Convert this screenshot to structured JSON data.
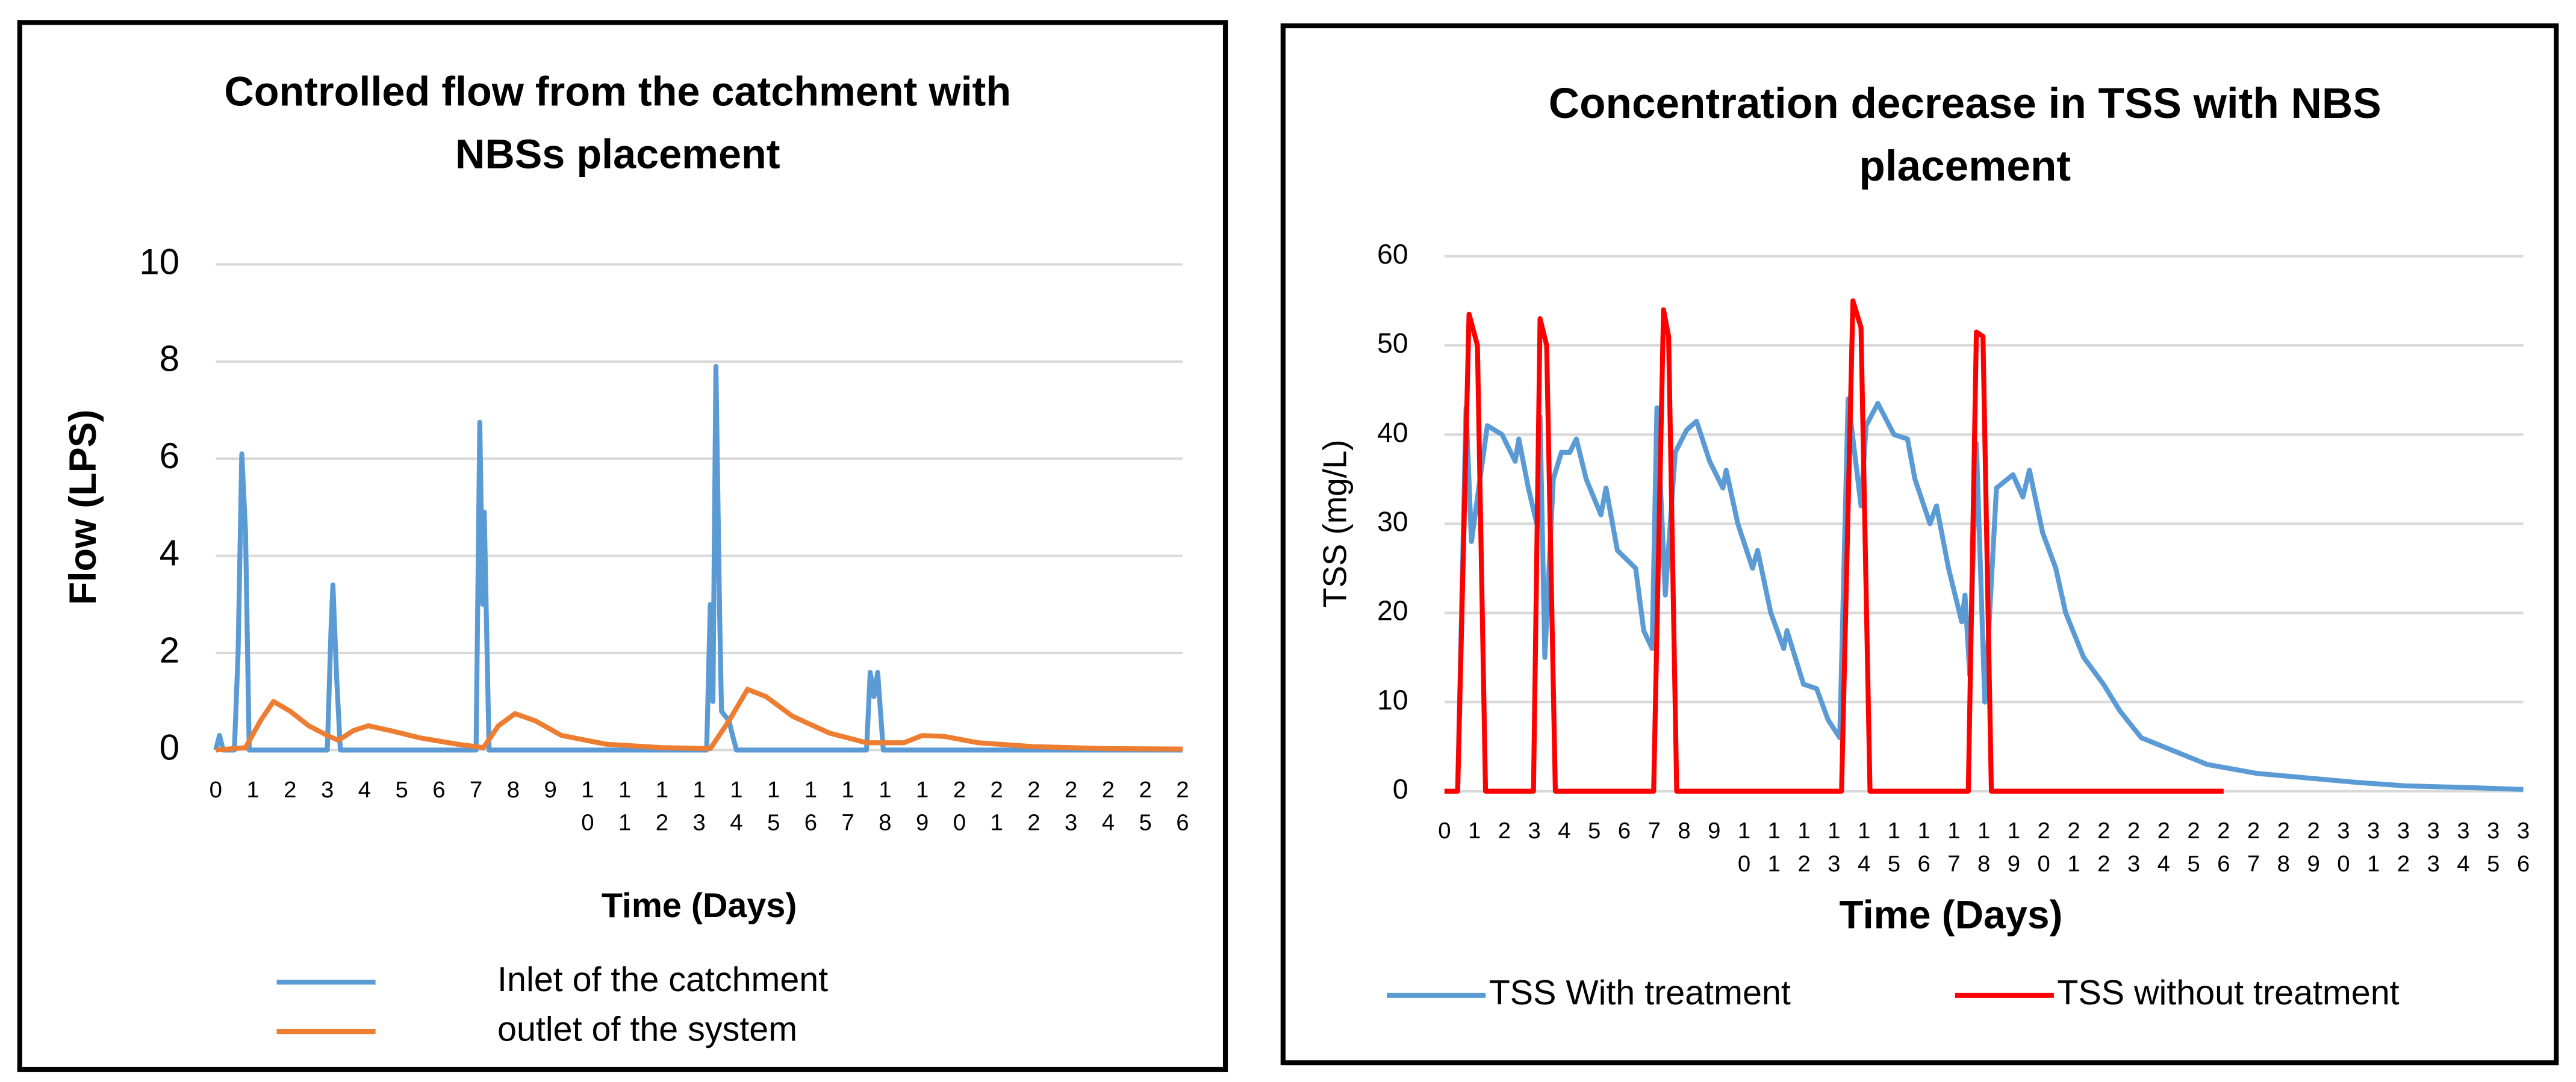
{
  "chart_data": [
    {
      "type": "line",
      "title": "Controlled flow from the catchment with NBSs placement",
      "x_label": "Time (Days)",
      "y_label": "Flow (LPS)",
      "xlim": [
        0,
        26
      ],
      "xticks": [
        0,
        1,
        2,
        3,
        4,
        5,
        6,
        7,
        8,
        9,
        10,
        11,
        12,
        13,
        14,
        15,
        16,
        17,
        18,
        19,
        20,
        21,
        22,
        23,
        24,
        25,
        26
      ],
      "ylim": [
        0,
        10
      ],
      "yticks": [
        0,
        2,
        4,
        6,
        8,
        10
      ],
      "grid": true,
      "legend": "bottom-vertical",
      "series": [
        {
          "name": "Inlet of the catchment",
          "color": "#5b9bd5",
          "x": [
            0,
            0.1,
            0.2,
            0.5,
            0.6,
            0.7,
            0.8,
            0.9,
            3.0,
            3.1,
            3.15,
            3.25,
            3.35,
            7.0,
            7.1,
            7.18,
            7.22,
            7.35,
            13.2,
            13.3,
            13.37,
            13.45,
            13.55,
            13.6,
            13.8,
            14,
            17.5,
            17.6,
            17.7,
            17.8,
            17.95,
            26
          ],
          "values": [
            0,
            0.3,
            0,
            0,
            2,
            6.1,
            4.5,
            0,
            0,
            2.5,
            3.4,
            1.5,
            0,
            0,
            6.75,
            3,
            4.9,
            0,
            0,
            3.0,
            1,
            7.9,
            2.8,
            0.8,
            0.6,
            0,
            0,
            1.6,
            1.1,
            1.6,
            0,
            0
          ]
        },
        {
          "name": "outlet of the system",
          "color": "#ed7d31",
          "x": [
            0,
            0.8,
            1.2,
            1.55,
            2,
            2.5,
            3,
            3.3,
            3.7,
            4.1,
            4.7,
            5.5,
            6.5,
            7.2,
            7.6,
            8.05,
            8.6,
            9.3,
            10.5,
            12,
            13.3,
            13.8,
            14.3,
            14.8,
            15.5,
            16.5,
            17.5,
            18.5,
            19,
            19.6,
            20.5,
            22,
            24,
            26
          ],
          "values": [
            0,
            0.05,
            0.6,
            1.0,
            0.8,
            0.5,
            0.3,
            0.2,
            0.4,
            0.5,
            0.4,
            0.25,
            0.12,
            0.05,
            0.5,
            0.75,
            0.6,
            0.3,
            0.12,
            0.05,
            0.03,
            0.6,
            1.25,
            1.1,
            0.7,
            0.35,
            0.15,
            0.15,
            0.3,
            0.28,
            0.15,
            0.07,
            0.03,
            0.02
          ]
        }
      ]
    },
    {
      "type": "line",
      "title": "Concentration decrease in TSS with NBS placement",
      "x_label": "Time (Days)",
      "y_label": "TSS (mg/L)",
      "xlim": [
        0,
        36
      ],
      "xticks": [
        0,
        1,
        2,
        3,
        4,
        5,
        6,
        7,
        8,
        9,
        10,
        11,
        12,
        13,
        14,
        15,
        16,
        17,
        18,
        19,
        20,
        21,
        22,
        23,
        24,
        25,
        26,
        27,
        28,
        29,
        30,
        31,
        32,
        33,
        34,
        35,
        36
      ],
      "ylim": [
        0,
        60
      ],
      "yticks": [
        0,
        10,
        20,
        30,
        40,
        50,
        60
      ],
      "grid": true,
      "legend": "bottom-horizontal",
      "series": [
        {
          "name": "TSS With treatment",
          "color": "#5b9bd5",
          "x": [
            0.44,
            0.72,
            0.9,
            1.43,
            1.92,
            2.36,
            2.48,
            2.8,
            3.08,
            3.19,
            3.35,
            3.63,
            3.9,
            4.18,
            4.4,
            4.73,
            5.22,
            5.39,
            5.77,
            6.38,
            6.65,
            6.93,
            7.09,
            7.37,
            7.7,
            8.08,
            8.41,
            8.85,
            9.29,
            9.4,
            9.79,
            10.28,
            10.45,
            10.89,
            11.32,
            11.43,
            11.98,
            12.42,
            12.8,
            13.19,
            13.47,
            13.9,
            14.07,
            14.46,
            15.0,
            15.45,
            15.7,
            16.2,
            16.42,
            16.82,
            17.26,
            17.37,
            17.53,
            17.75,
            18.03,
            18.42,
            18.97,
            19.3,
            19.52,
            19.96,
            20.4,
            20.73,
            21.33,
            21.99,
            22.54,
            23.25,
            24.35,
            25.45,
            27.1,
            28.75,
            30.4,
            32.05,
            34.25,
            36
          ],
          "values": [
            0,
            43,
            28,
            41,
            40,
            37,
            39.5,
            34,
            30,
            42,
            15,
            35,
            38,
            38,
            39.5,
            35,
            31,
            34,
            27,
            25,
            18,
            16,
            43,
            22,
            38,
            40.5,
            41.5,
            37,
            34,
            36,
            30,
            25,
            27,
            20,
            16,
            18,
            12,
            11.5,
            8,
            6,
            44,
            32,
            41,
            43.5,
            40,
            39.5,
            35,
            30,
            32,
            25,
            19,
            22,
            13,
            39,
            10,
            34,
            35.5,
            33,
            36,
            29,
            25,
            20,
            15,
            12,
            9,
            6,
            4.5,
            3,
            2,
            1.5,
            1,
            0.6,
            0.4,
            0.2
          ]
        },
        {
          "name": "TSS without treatment",
          "color": "#ff0000",
          "x": [
            0,
            0.44,
            0.82,
            1.1,
            1.37,
            2.97,
            3.19,
            3.41,
            3.7,
            6.98,
            7.31,
            7.48,
            7.75,
            13.25,
            13.63,
            13.9,
            14.2,
            17.48,
            17.75,
            17.97,
            18.25,
            26
          ],
          "values": [
            0,
            0,
            53.5,
            50,
            0,
            0,
            53,
            50,
            0,
            0,
            54,
            51,
            0,
            0,
            55,
            52,
            0,
            0,
            51.5,
            51,
            0,
            0
          ]
        }
      ]
    }
  ]
}
